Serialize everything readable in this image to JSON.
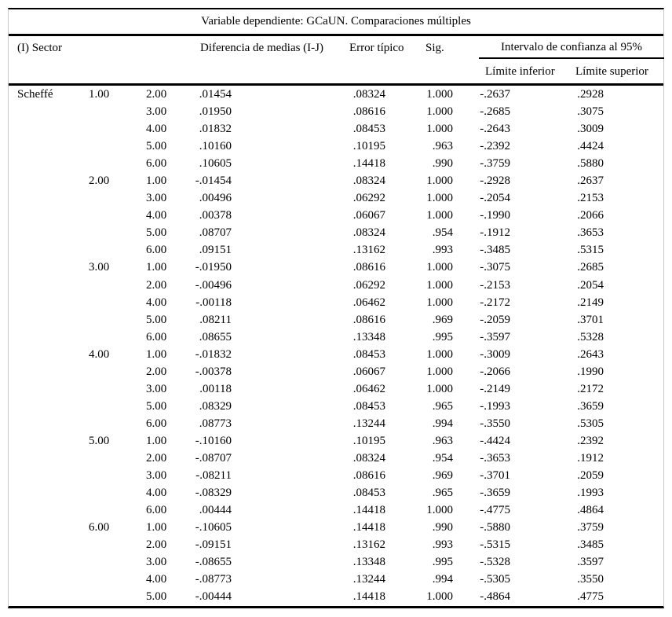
{
  "title": "Variable dependiente: GCaUN. Comparaciones múltiples",
  "header": {
    "col_sector": "(I) Sector",
    "col_mean_diff": "Diferencia de medias (I-J)",
    "col_std_error": "Error típico",
    "col_sig": "Sig.",
    "col_ci": "Intervalo de confianza al 95%",
    "col_ci_lower": "Límite inferior",
    "col_ci_upper": "Límite superior"
  },
  "method": "Scheffé",
  "groups": [
    {
      "sector_i": "1.00",
      "rows": [
        {
          "sector_j": "2.00",
          "mean_diff": ".01454",
          "std_error": ".08324",
          "sig": "1.000",
          "ci_lower": "-.2637",
          "ci_upper": ".2928"
        },
        {
          "sector_j": "3.00",
          "mean_diff": ".01950",
          "std_error": ".08616",
          "sig": "1.000",
          "ci_lower": "-.2685",
          "ci_upper": ".3075"
        },
        {
          "sector_j": "4.00",
          "mean_diff": ".01832",
          "std_error": ".08453",
          "sig": "1.000",
          "ci_lower": "-.2643",
          "ci_upper": ".3009"
        },
        {
          "sector_j": "5.00",
          "mean_diff": ".10160",
          "std_error": ".10195",
          "sig": ".963",
          "ci_lower": "-.2392",
          "ci_upper": ".4424"
        },
        {
          "sector_j": "6.00",
          "mean_diff": ".10605",
          "std_error": ".14418",
          "sig": ".990",
          "ci_lower": "-.3759",
          "ci_upper": ".5880"
        }
      ]
    },
    {
      "sector_i": "2.00",
      "rows": [
        {
          "sector_j": "1.00",
          "mean_diff": "-.01454",
          "std_error": ".08324",
          "sig": "1.000",
          "ci_lower": "-.2928",
          "ci_upper": ".2637"
        },
        {
          "sector_j": "3.00",
          "mean_diff": ".00496",
          "std_error": ".06292",
          "sig": "1.000",
          "ci_lower": "-.2054",
          "ci_upper": ".2153"
        },
        {
          "sector_j": "4.00",
          "mean_diff": ".00378",
          "std_error": ".06067",
          "sig": "1.000",
          "ci_lower": "-.1990",
          "ci_upper": ".2066"
        },
        {
          "sector_j": "5.00",
          "mean_diff": ".08707",
          "std_error": ".08324",
          "sig": ".954",
          "ci_lower": "-.1912",
          "ci_upper": ".3653"
        },
        {
          "sector_j": "6.00",
          "mean_diff": ".09151",
          "std_error": ".13162",
          "sig": ".993",
          "ci_lower": "-.3485",
          "ci_upper": ".5315"
        }
      ]
    },
    {
      "sector_i": "3.00",
      "rows": [
        {
          "sector_j": "1.00",
          "mean_diff": "-.01950",
          "std_error": ".08616",
          "sig": "1.000",
          "ci_lower": "-.3075",
          "ci_upper": ".2685"
        },
        {
          "sector_j": "2.00",
          "mean_diff": "-.00496",
          "std_error": ".06292",
          "sig": "1.000",
          "ci_lower": "-.2153",
          "ci_upper": ".2054"
        },
        {
          "sector_j": "4.00",
          "mean_diff": "-.00118",
          "std_error": ".06462",
          "sig": "1.000",
          "ci_lower": "-.2172",
          "ci_upper": ".2149"
        },
        {
          "sector_j": "5.00",
          "mean_diff": ".08211",
          "std_error": ".08616",
          "sig": ".969",
          "ci_lower": "-.2059",
          "ci_upper": ".3701"
        },
        {
          "sector_j": "6.00",
          "mean_diff": ".08655",
          "std_error": ".13348",
          "sig": ".995",
          "ci_lower": "-.3597",
          "ci_upper": ".5328"
        }
      ]
    },
    {
      "sector_i": "4.00",
      "rows": [
        {
          "sector_j": "1.00",
          "mean_diff": "-.01832",
          "std_error": ".08453",
          "sig": "1.000",
          "ci_lower": "-.3009",
          "ci_upper": ".2643"
        },
        {
          "sector_j": "2.00",
          "mean_diff": "-.00378",
          "std_error": ".06067",
          "sig": "1.000",
          "ci_lower": "-.2066",
          "ci_upper": ".1990"
        },
        {
          "sector_j": "3.00",
          "mean_diff": ".00118",
          "std_error": ".06462",
          "sig": "1.000",
          "ci_lower": "-.2149",
          "ci_upper": ".2172"
        },
        {
          "sector_j": "5.00",
          "mean_diff": ".08329",
          "std_error": ".08453",
          "sig": ".965",
          "ci_lower": "-.1993",
          "ci_upper": ".3659"
        },
        {
          "sector_j": "6.00",
          "mean_diff": ".08773",
          "std_error": ".13244",
          "sig": ".994",
          "ci_lower": "-.3550",
          "ci_upper": ".5305"
        }
      ]
    },
    {
      "sector_i": "5.00",
      "rows": [
        {
          "sector_j": "1.00",
          "mean_diff": "-.10160",
          "std_error": ".10195",
          "sig": ".963",
          "ci_lower": "-.4424",
          "ci_upper": ".2392"
        },
        {
          "sector_j": "2.00",
          "mean_diff": "-.08707",
          "std_error": ".08324",
          "sig": ".954",
          "ci_lower": "-.3653",
          "ci_upper": ".1912"
        },
        {
          "sector_j": "3.00",
          "mean_diff": "-.08211",
          "std_error": ".08616",
          "sig": ".969",
          "ci_lower": "-.3701",
          "ci_upper": ".2059"
        },
        {
          "sector_j": "4.00",
          "mean_diff": "-.08329",
          "std_error": ".08453",
          "sig": ".965",
          "ci_lower": "-.3659",
          "ci_upper": ".1993"
        },
        {
          "sector_j": "6.00",
          "mean_diff": ".00444",
          "std_error": ".14418",
          "sig": "1.000",
          "ci_lower": "-.4775",
          "ci_upper": ".4864"
        }
      ]
    },
    {
      "sector_i": "6.00",
      "rows": [
        {
          "sector_j": "1.00",
          "mean_diff": "-.10605",
          "std_error": ".14418",
          "sig": ".990",
          "ci_lower": "-.5880",
          "ci_upper": ".3759"
        },
        {
          "sector_j": "2.00",
          "mean_diff": "-.09151",
          "std_error": ".13162",
          "sig": ".993",
          "ci_lower": "-.5315",
          "ci_upper": ".3485"
        },
        {
          "sector_j": "3.00",
          "mean_diff": "-.08655",
          "std_error": ".13348",
          "sig": ".995",
          "ci_lower": "-.5328",
          "ci_upper": ".3597"
        },
        {
          "sector_j": "4.00",
          "mean_diff": "-.08773",
          "std_error": ".13244",
          "sig": ".994",
          "ci_lower": "-.5305",
          "ci_upper": ".3550"
        },
        {
          "sector_j": "5.00",
          "mean_diff": "-.00444",
          "std_error": ".14418",
          "sig": "1.000",
          "ci_lower": "-.4864",
          "ci_upper": ".4775"
        }
      ]
    }
  ]
}
